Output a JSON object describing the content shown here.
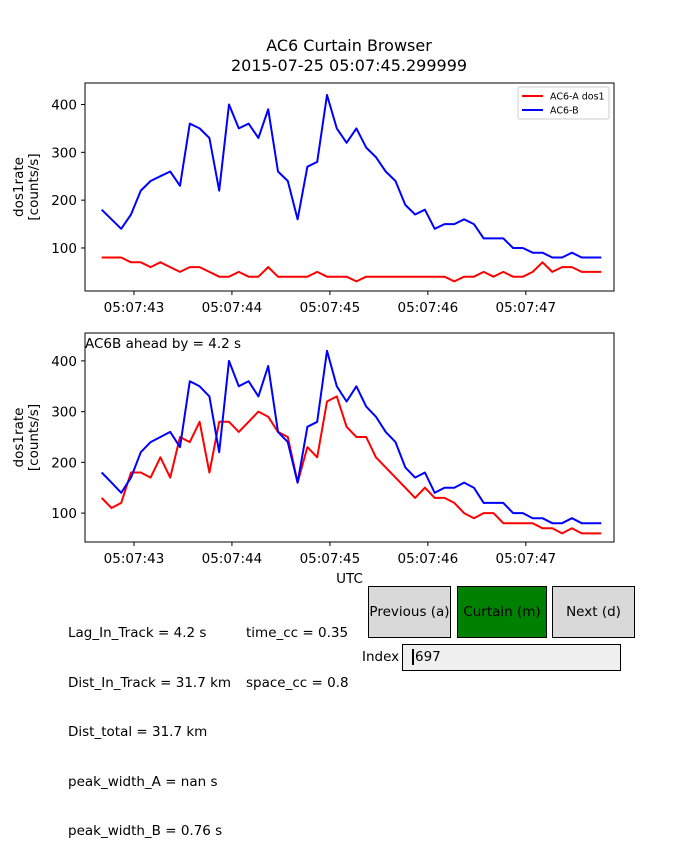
{
  "title": {
    "line1": "AC6 Curtain Browser",
    "line2": "2015-07-25 05:07:45.299999"
  },
  "colors": {
    "ac6a": "#ff0000",
    "ac6b": "#0000ff",
    "curtain_button": "#008000",
    "button_gray": "#d9d9d9"
  },
  "chart_data": [
    {
      "type": "line",
      "ylabel": "dos1rate\n[counts/s]",
      "xtick_labels": [
        "05:07:43",
        "05:07:44",
        "05:07:45",
        "05:07:46",
        "05:07:47"
      ],
      "xticks": [
        43,
        44,
        45,
        46,
        47
      ],
      "xlim": [
        42.5,
        47.9
      ],
      "ylim": [
        10,
        445
      ],
      "yticks": [
        100,
        200,
        300,
        400
      ],
      "legend": "upper right",
      "x": [
        42.67,
        42.77,
        42.87,
        42.97,
        43.07,
        43.17,
        43.27,
        43.37,
        43.47,
        43.57,
        43.67,
        43.77,
        43.87,
        43.97,
        44.07,
        44.17,
        44.27,
        44.37,
        44.47,
        44.57,
        44.67,
        44.77,
        44.87,
        44.97,
        45.07,
        45.17,
        45.27,
        45.37,
        45.47,
        45.57,
        45.67,
        45.77,
        45.87,
        45.97,
        46.07,
        46.17,
        46.27,
        46.37,
        46.47,
        46.57,
        46.67,
        46.77,
        46.87,
        46.97,
        47.07,
        47.17,
        47.27,
        47.37,
        47.47,
        47.57,
        47.67,
        47.77
      ],
      "series": [
        {
          "name": "AC6-A dos1",
          "color": "#ff0000",
          "values": [
            80,
            80,
            80,
            70,
            70,
            60,
            70,
            60,
            50,
            60,
            60,
            50,
            40,
            40,
            50,
            40,
            40,
            60,
            40,
            40,
            40,
            40,
            50,
            40,
            40,
            40,
            30,
            40,
            40,
            40,
            40,
            40,
            40,
            40,
            40,
            40,
            30,
            40,
            40,
            50,
            40,
            50,
            40,
            40,
            50,
            70,
            50,
            60,
            60,
            50,
            50,
            50
          ]
        },
        {
          "name": "AC6-B",
          "color": "#0000ff",
          "values": [
            180,
            160,
            140,
            170,
            220,
            240,
            250,
            260,
            230,
            360,
            350,
            330,
            220,
            400,
            350,
            360,
            330,
            390,
            260,
            240,
            160,
            270,
            280,
            420,
            350,
            320,
            350,
            310,
            290,
            260,
            240,
            190,
            170,
            180,
            140,
            150,
            150,
            160,
            150,
            120,
            120,
            120,
            100,
            100,
            90,
            90,
            80,
            80,
            90,
            80,
            80,
            80
          ]
        }
      ]
    },
    {
      "type": "line",
      "ylabel": "dos1rate\n[counts/s]",
      "xlabel": "UTC",
      "annotation": "AC6B ahead by = 4.2 s",
      "xtick_labels": [
        "05:07:43",
        "05:07:44",
        "05:07:45",
        "05:07:46",
        "05:07:47"
      ],
      "xticks": [
        43,
        44,
        45,
        46,
        47
      ],
      "xlim": [
        42.5,
        47.9
      ],
      "ylim": [
        43,
        455
      ],
      "yticks": [
        100,
        200,
        300,
        400
      ],
      "x": [
        42.67,
        42.77,
        42.87,
        42.97,
        43.07,
        43.17,
        43.27,
        43.37,
        43.47,
        43.57,
        43.67,
        43.77,
        43.87,
        43.97,
        44.07,
        44.17,
        44.27,
        44.37,
        44.47,
        44.57,
        44.67,
        44.77,
        44.87,
        44.97,
        45.07,
        45.17,
        45.27,
        45.37,
        45.47,
        45.57,
        45.67,
        45.77,
        45.87,
        45.97,
        46.07,
        46.17,
        46.27,
        46.37,
        46.47,
        46.57,
        46.67,
        46.77,
        46.87,
        46.97,
        47.07,
        47.17,
        47.27,
        47.37,
        47.47,
        47.57,
        47.67,
        47.77
      ],
      "series": [
        {
          "name": "AC6-A dos1",
          "color": "#ff0000",
          "values": [
            130,
            110,
            120,
            180,
            180,
            170,
            210,
            170,
            250,
            240,
            280,
            180,
            280,
            280,
            260,
            280,
            300,
            290,
            260,
            250,
            160,
            230,
            210,
            320,
            330,
            270,
            250,
            250,
            210,
            190,
            170,
            150,
            130,
            150,
            130,
            130,
            120,
            100,
            90,
            100,
            100,
            80,
            80,
            80,
            80,
            70,
            70,
            60,
            70,
            60,
            60,
            60
          ]
        },
        {
          "name": "AC6-B",
          "color": "#0000ff",
          "values": [
            180,
            160,
            140,
            170,
            220,
            240,
            250,
            260,
            230,
            360,
            350,
            330,
            220,
            400,
            350,
            360,
            330,
            390,
            260,
            240,
            160,
            270,
            280,
            420,
            350,
            320,
            350,
            310,
            290,
            260,
            240,
            190,
            170,
            180,
            140,
            150,
            150,
            160,
            150,
            120,
            120,
            120,
            100,
            100,
            90,
            90,
            80,
            80,
            90,
            80,
            80,
            80
          ]
        }
      ]
    }
  ],
  "info": {
    "left_lines": [
      "Lag_In_Track = 4.2 s",
      "Dist_In_Track = 31.7 km",
      "Dist_total = 31.7 km",
      "peak_width_A = nan s",
      "peak_width_B = 0.76 s"
    ],
    "right_lines": [
      "time_cc = 0.35",
      "space_cc = 0.8"
    ]
  },
  "buttons": {
    "previous": "Previous (a)",
    "curtain": "Curtain (m)",
    "next": "Next (d)"
  },
  "index": {
    "label": "Index",
    "value": "697"
  }
}
